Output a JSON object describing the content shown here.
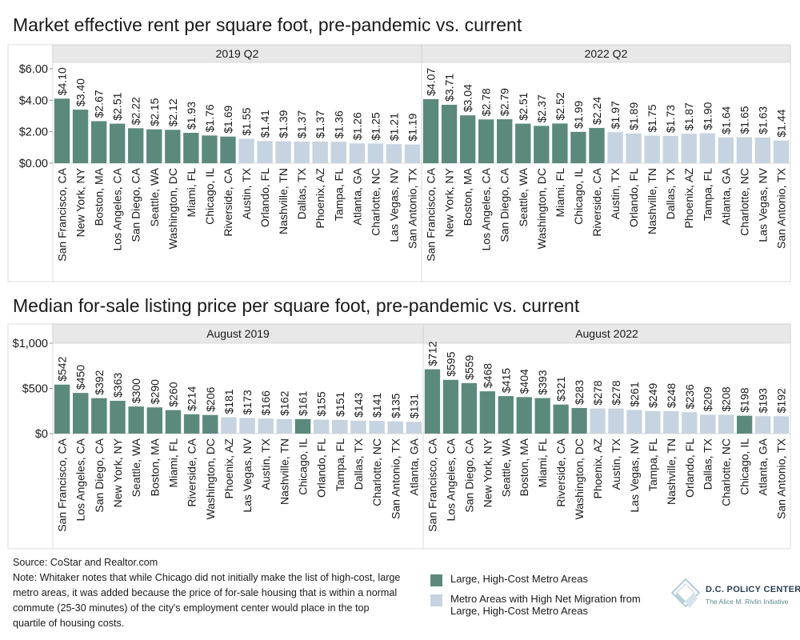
{
  "colors": {
    "large_high_cost": "#5b8a7d",
    "high_net_migration": "#c6d3e0",
    "panel_header": "#e8e8e8",
    "text": "#1a1a1a"
  },
  "chart_data": [
    {
      "type": "bar",
      "title": "Market effective rent per square foot, pre-pandemic vs. current",
      "ylim": [
        0,
        6.4
      ],
      "yticks": [
        0,
        2,
        4,
        6
      ],
      "ytick_labels": [
        "$0.00",
        "$2.00",
        "$4.00",
        "$6.00"
      ],
      "grid": false,
      "value_prefix": "$",
      "value_decimals": 2,
      "panels": [
        {
          "label": "2019 Q2",
          "categories": [
            "San Francisco, CA",
            "New York, NY",
            "Boston, MA",
            "Los Angeles, CA",
            "San Diego, CA",
            "Seattle, WA",
            "Washington, DC",
            "Miami, FL",
            "Chicago, IL",
            "Riverside, CA",
            "Austin, TX",
            "Orlando, FL",
            "Nashville, TN",
            "Dallas, TX",
            "Phoenix, AZ",
            "Tampa, FL",
            "Atlanta, GA",
            "Charlotte, NC",
            "Las Vegas, NV",
            "San Antonio, TX"
          ],
          "values": [
            4.1,
            3.4,
            2.67,
            2.51,
            2.22,
            2.15,
            2.12,
            1.93,
            1.76,
            1.69,
            1.55,
            1.41,
            1.39,
            1.37,
            1.37,
            1.36,
            1.26,
            1.25,
            1.21,
            1.19
          ],
          "groups": [
            "large",
            "large",
            "large",
            "large",
            "large",
            "large",
            "large",
            "large",
            "large",
            "large",
            "migration",
            "migration",
            "migration",
            "migration",
            "migration",
            "migration",
            "migration",
            "migration",
            "migration",
            "migration"
          ]
        },
        {
          "label": "2022 Q2",
          "categories": [
            "San Francisco, CA",
            "New York, NY",
            "Boston, MA",
            "Los Angeles, CA",
            "San Diego, CA",
            "Seattle, WA",
            "Washington, DC",
            "Miami, FL",
            "Chicago, IL",
            "Riverside, CA",
            "Austin, TX",
            "Orlando, FL",
            "Nashville, TN",
            "Dallas, TX",
            "Phoenix, AZ",
            "Tampa, FL",
            "Atlanta, GA",
            "Charlotte, NC",
            "Las Vegas, NV",
            "San Antonio, TX"
          ],
          "values": [
            4.07,
            3.71,
            3.04,
            2.78,
            2.79,
            2.51,
            2.37,
            2.52,
            1.99,
            2.24,
            1.97,
            1.89,
            1.75,
            1.73,
            1.87,
            1.9,
            1.64,
            1.65,
            1.63,
            1.44
          ],
          "groups": [
            "large",
            "large",
            "large",
            "large",
            "large",
            "large",
            "large",
            "large",
            "large",
            "large",
            "migration",
            "migration",
            "migration",
            "migration",
            "migration",
            "migration",
            "migration",
            "migration",
            "migration",
            "migration"
          ]
        }
      ]
    },
    {
      "type": "bar",
      "title": "Median for-sale listing price per square foot, pre-pandemic vs. current",
      "ylim": [
        0,
        1000
      ],
      "yticks": [
        0,
        500,
        1000
      ],
      "ytick_labels": [
        "$0",
        "$500",
        "$1,000"
      ],
      "grid": false,
      "value_prefix": "$",
      "value_decimals": 0,
      "panels": [
        {
          "label": "August 2019",
          "categories": [
            "San Francisco, CA",
            "Los Angeles, CA",
            "San Diego, CA",
            "New York, NY",
            "Seattle, WA",
            "Boston, MA",
            "Miami, FL",
            "Riverside, CA",
            "Washington, DC",
            "Phoenix, AZ",
            "Las Vegas, NV",
            "Austin, TX",
            "Nashville, TN",
            "Chicago, IL",
            "Orlando, FL",
            "Tampa, FL",
            "Dallas, TX",
            "Charlotte, NC",
            "San Antonio, TX",
            "Atlanta, GA"
          ],
          "values": [
            542,
            450,
            392,
            363,
            300,
            290,
            260,
            214,
            206,
            181,
            173,
            166,
            162,
            161,
            155,
            151,
            143,
            141,
            135,
            131
          ],
          "groups": [
            "large",
            "large",
            "large",
            "large",
            "large",
            "large",
            "large",
            "large",
            "large",
            "migration",
            "migration",
            "migration",
            "migration",
            "large",
            "migration",
            "migration",
            "migration",
            "migration",
            "migration",
            "migration"
          ]
        },
        {
          "label": "August 2022",
          "categories": [
            "San Francisco, CA",
            "Los Angeles, CA",
            "San Diego, CA",
            "New York, NY",
            "Seattle, WA",
            "Boston, MA",
            "Miami, FL",
            "Riverside, CA",
            "Washington, DC",
            "Phoenix, AZ",
            "Austin, TX",
            "Las Vegas, NV",
            "Tampa, FL",
            "Nashville, TN",
            "Orlando, FL",
            "Dallas, TX",
            "Charlotte, NC",
            "Chicago, IL",
            "Atlanta, GA",
            "San Antonio, TX"
          ],
          "values": [
            712,
            595,
            559,
            468,
            415,
            404,
            393,
            321,
            283,
            278,
            278,
            261,
            249,
            248,
            236,
            209,
            208,
            198,
            193,
            192
          ],
          "groups": [
            "large",
            "large",
            "large",
            "large",
            "large",
            "large",
            "large",
            "large",
            "large",
            "migration",
            "migration",
            "migration",
            "migration",
            "migration",
            "migration",
            "migration",
            "migration",
            "large",
            "migration",
            "migration"
          ]
        }
      ]
    }
  ],
  "legend": [
    {
      "key": "large",
      "label": "Large, High-Cost Metro Areas"
    },
    {
      "key": "migration",
      "label": "Metro Areas with High Net Migration from Large, High-Cost Metro Areas"
    }
  ],
  "footer": {
    "source": "Source: CoStar and Realtor.com",
    "note": "Note: Whitaker notes that while Chicago did not initially make the list of high-cost, large metro areas, it was added because the price of for-sale housing that is within a normal commute (25-30 minutes) of the city's employment center would place in the top quartile of housing costs."
  },
  "logo": {
    "name": "D.C. POLICY CENTER",
    "subtitle": "The Alice M. Rivlin Initiative"
  }
}
